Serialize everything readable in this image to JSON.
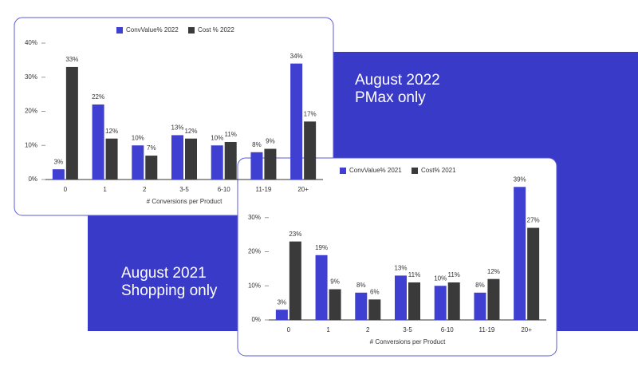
{
  "captions": [
    {
      "title": "August 2022",
      "subtitle": "PMax only"
    },
    {
      "title": "August 2021",
      "subtitle": "Shopping only"
    }
  ],
  "chart_data": [
    {
      "type": "bar",
      "x_label": "# Conversions per Product",
      "categories": [
        "0",
        "1",
        "2",
        "3-5",
        "6-10",
        "11-19",
        "20+"
      ],
      "series": [
        {
          "name": "ConvValue% 2022",
          "color": "#3f3fd1",
          "values": [
            3,
            22,
            10,
            13,
            10,
            8,
            34
          ],
          "value_labels": [
            "3%",
            "22%",
            "10%",
            "13%",
            "10%",
            "8%",
            "34%"
          ]
        },
        {
          "name": "Cost % 2022",
          "color": "#3a3a3a",
          "values": [
            33,
            12,
            7,
            12,
            11,
            9,
            17
          ],
          "value_labels": [
            "33%",
            "12%",
            "7%",
            "12%",
            "11%",
            "9%",
            "17%"
          ]
        }
      ],
      "ylim": [
        0,
        40
      ],
      "yticks": [
        {
          "value": 0,
          "label": "0%"
        },
        {
          "value": 10,
          "label": "10%"
        },
        {
          "value": 20,
          "label": "20%"
        },
        {
          "value": 30,
          "label": "30%"
        },
        {
          "value": 40,
          "label": "40%"
        }
      ],
      "legend": "top"
    },
    {
      "type": "bar",
      "x_label": "# Conversions per Product",
      "categories": [
        "0",
        "1",
        "2",
        "3-5",
        "6-10",
        "11-19",
        "20+"
      ],
      "series": [
        {
          "name": "ConvValue% 2021",
          "color": "#3f3fd1",
          "values": [
            3,
            19,
            8,
            13,
            10,
            8,
            39
          ],
          "value_labels": [
            "3%",
            "19%",
            "8%",
            "13%",
            "10%",
            "8%",
            "39%"
          ]
        },
        {
          "name": "Cost% 2021",
          "color": "#3a3a3a",
          "values": [
            23,
            9,
            6,
            11,
            11,
            12,
            27
          ],
          "value_labels": [
            "23%",
            "9%",
            "6%",
            "11%",
            "11%",
            "12%",
            "27%"
          ]
        }
      ],
      "ylim": [
        0,
        40
      ],
      "yticks": [
        {
          "value": 0,
          "label": "0%"
        },
        {
          "value": 10,
          "label": "10%"
        },
        {
          "value": 20,
          "label": "20%"
        },
        {
          "value": 30,
          "label": "30%"
        }
      ],
      "legend": "top"
    }
  ]
}
